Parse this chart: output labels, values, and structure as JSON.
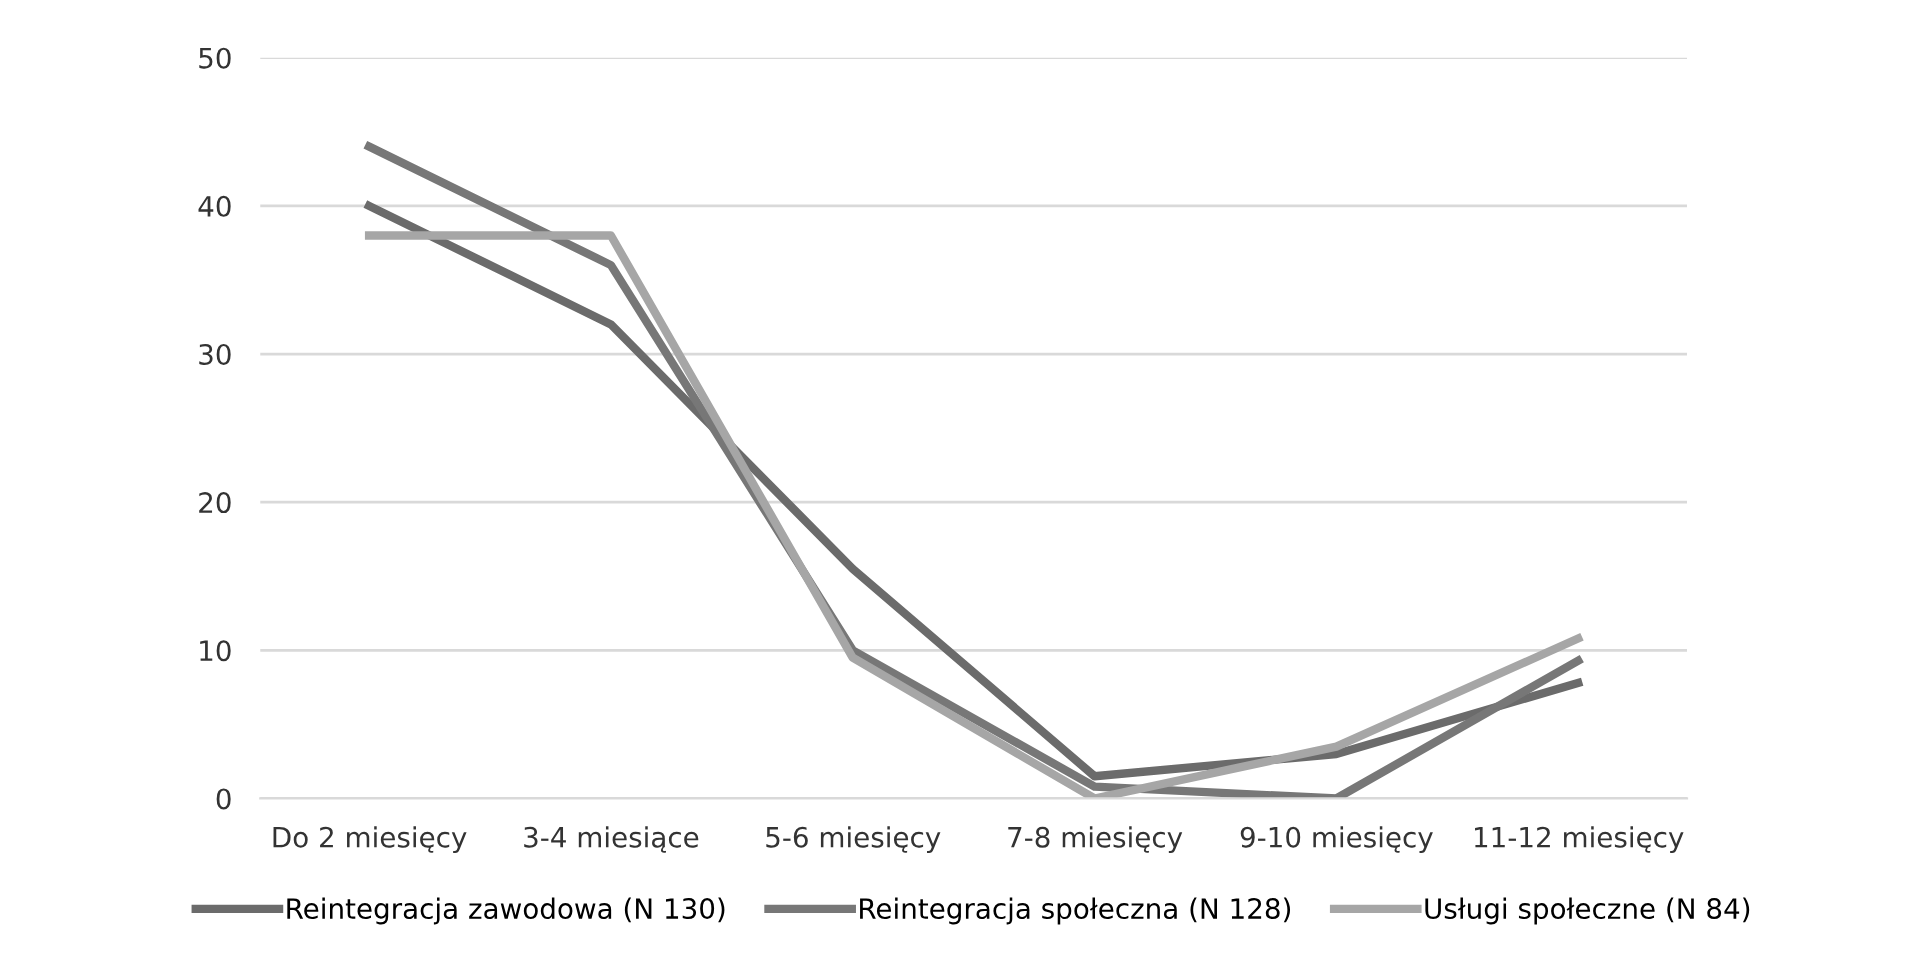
{
  "chart_data": {
    "type": "line",
    "categories": [
      "Do 2 miesięcy",
      "3-4 miesiące",
      "5-6 miesięcy",
      "7-8 miesięcy",
      "9-10 miesięcy",
      "11-12 miesięcy"
    ],
    "series": [
      {
        "name": "Reintegracja zawodowa (N 130)",
        "color": "#6b6b6b",
        "values": [
          40,
          32,
          15.5,
          1.5,
          3,
          7.8
        ]
      },
      {
        "name": "Reintegracja społeczna (N 128)",
        "color": "#777777",
        "values": [
          44,
          36,
          10,
          0.8,
          0,
          9.3
        ]
      },
      {
        "name": "Usługi społeczne (N 84)",
        "color": "#a6a6a6",
        "values": [
          38,
          38,
          9.5,
          0,
          3.5,
          10.8
        ]
      }
    ],
    "ylim": [
      0,
      50
    ],
    "yticks": [
      0,
      10,
      20,
      30,
      40,
      50
    ],
    "grid": "y",
    "legend": "bottom",
    "marker": "none",
    "line_style": "solid"
  }
}
